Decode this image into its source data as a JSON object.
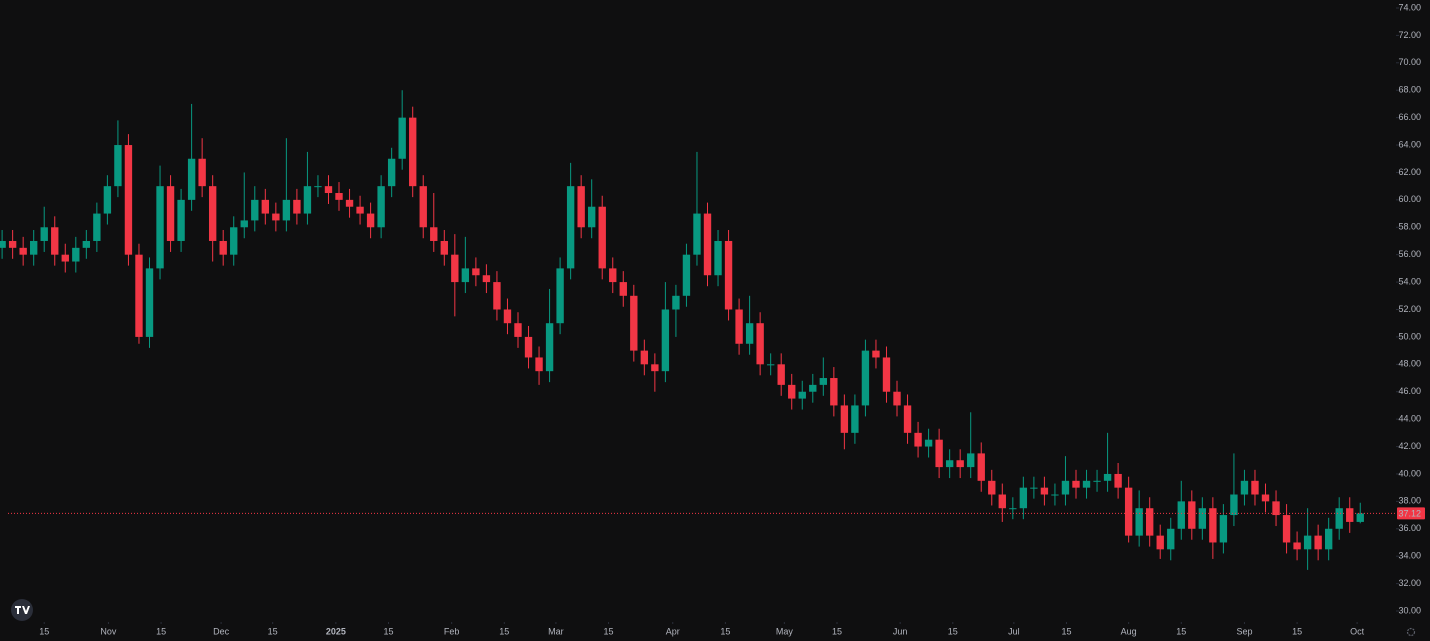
{
  "chart_data": {
    "type": "candlestick",
    "up_color": "#089981",
    "down_color": "#f23645",
    "ylim": [
      30,
      74
    ],
    "yticks": [
      {
        "value": 30,
        "label": "30.00"
      },
      {
        "value": 32,
        "label": "32.00"
      },
      {
        "value": 34,
        "label": "34.00"
      },
      {
        "value": 36,
        "label": "36.00"
      },
      {
        "value": 38,
        "label": "38.00"
      },
      {
        "value": 40,
        "label": "40.00"
      },
      {
        "value": 42,
        "label": "42.00"
      },
      {
        "value": 44,
        "label": "44.00"
      },
      {
        "value": 46,
        "label": "46.00"
      },
      {
        "value": 48,
        "label": "48.00"
      },
      {
        "value": 50,
        "label": "50.00"
      },
      {
        "value": 52,
        "label": "52.00"
      },
      {
        "value": 54,
        "label": "54.00"
      },
      {
        "value": 56,
        "label": "56.00"
      },
      {
        "value": 58,
        "label": "58.00"
      },
      {
        "value": 60,
        "label": "60.00"
      },
      {
        "value": 62,
        "label": "62.00"
      },
      {
        "value": 64,
        "label": "64.00"
      },
      {
        "value": 66,
        "label": "66.00"
      },
      {
        "value": 68,
        "label": "68.00"
      },
      {
        "value": 70,
        "label": "70.00"
      },
      {
        "value": 72,
        "label": "72.00"
      },
      {
        "value": 74,
        "label": "74.00"
      }
    ],
    "xlim": [
      -0.2,
      132.3
    ],
    "xticks": [
      {
        "value": 4.0,
        "label": "15"
      },
      {
        "value": 10.1,
        "label": "Nov"
      },
      {
        "value": 15.1,
        "label": "15"
      },
      {
        "value": 20.8,
        "label": "Dec"
      },
      {
        "value": 25.7,
        "label": "15"
      },
      {
        "value": 31.7,
        "label": "2025",
        "bold": true
      },
      {
        "value": 36.7,
        "label": "15"
      },
      {
        "value": 42.7,
        "label": "Feb"
      },
      {
        "value": 47.7,
        "label": "15"
      },
      {
        "value": 52.6,
        "label": "Mar"
      },
      {
        "value": 57.6,
        "label": "15"
      },
      {
        "value": 63.7,
        "label": "Apr"
      },
      {
        "value": 68.7,
        "label": "15"
      },
      {
        "value": 74.3,
        "label": "May"
      },
      {
        "value": 79.3,
        "label": "15"
      },
      {
        "value": 85.3,
        "label": "Jun"
      },
      {
        "value": 90.3,
        "label": "15"
      },
      {
        "value": 96.1,
        "label": "Jul"
      },
      {
        "value": 101.1,
        "label": "15"
      },
      {
        "value": 107.0,
        "label": "Aug"
      },
      {
        "value": 112.0,
        "label": "15"
      },
      {
        "value": 118.0,
        "label": "Sep"
      },
      {
        "value": 123.0,
        "label": "15"
      },
      {
        "value": 128.7,
        "label": "Oct"
      }
    ],
    "last_price": 37.12,
    "last_price_label": "37.12",
    "open": [
      56.5,
      57,
      56.5,
      56,
      57,
      58,
      56,
      55.5,
      56.5,
      57,
      59,
      61,
      64,
      56,
      50,
      55,
      61,
      57,
      60,
      63,
      61,
      57,
      56,
      58,
      58.5,
      60,
      59,
      58.5,
      60,
      59,
      61,
      61,
      60.5,
      60,
      59.5,
      59,
      58,
      61,
      63,
      66,
      61,
      58,
      57,
      56,
      54,
      55,
      54.5,
      54,
      52,
      51,
      50,
      48.5,
      47.5,
      51,
      55,
      61,
      58,
      59.5,
      55,
      54,
      53,
      49,
      48,
      47.5,
      52,
      53,
      56,
      59,
      54.5,
      57,
      52,
      49.5,
      51,
      48,
      48,
      46.5,
      45.5,
      46,
      46.5,
      47,
      45,
      43,
      45,
      49,
      48.5,
      46,
      45,
      43,
      42,
      42.5,
      40.5,
      41,
      40.5,
      41.5,
      39.5,
      38.5,
      37.5,
      37.5,
      39,
      39,
      38.5,
      38.5,
      39.5,
      39,
      39.5,
      39.5,
      40,
      39,
      35.5,
      37.5,
      35.5,
      34.5,
      36,
      38,
      36,
      37.5,
      35,
      37,
      38.5,
      39.5,
      38.5,
      38,
      37,
      35,
      34.5,
      35.5,
      34.5,
      36,
      37.5,
      36.5
    ],
    "high": [
      57.8,
      57.8,
      57.3,
      57.8,
      59.5,
      58.8,
      56.8,
      57.3,
      57.8,
      59.8,
      61.8,
      65.8,
      64.8,
      56.8,
      55.8,
      62.5,
      61.8,
      60.8,
      67,
      64.5,
      61.8,
      57.8,
      58.8,
      62,
      61,
      60.8,
      59.8,
      64.5,
      60.8,
      63.5,
      61.8,
      61.8,
      61.3,
      60.8,
      60.3,
      59.8,
      61.8,
      63.8,
      68,
      66.8,
      61.8,
      60.5,
      57.8,
      57.5,
      57.3,
      55.8,
      55.3,
      54.8,
      52.8,
      51.8,
      50.8,
      49.3,
      53.5,
      55.8,
      62.7,
      61.8,
      61.5,
      60.3,
      55.8,
      54.8,
      53.8,
      49.8,
      48.8,
      54,
      53.8,
      56.8,
      63.5,
      59.8,
      57.8,
      57.8,
      52.8,
      53,
      51.8,
      48.8,
      48.8,
      47.3,
      46.8,
      47.3,
      48.5,
      47.8,
      45.8,
      45.8,
      49.8,
      49.8,
      49.3,
      46.8,
      45.8,
      43.8,
      43.3,
      43.3,
      41.8,
      41.8,
      44.5,
      42.3,
      40.3,
      39.3,
      38.3,
      39.8,
      39.8,
      39.8,
      39.3,
      41.3,
      40.3,
      40.3,
      40.3,
      43,
      40.8,
      39.8,
      38.8,
      38.3,
      36.3,
      36.8,
      39.5,
      38.8,
      38.3,
      38.3,
      37.8,
      41.5,
      40.3,
      40.3,
      39.3,
      38.8,
      37.8,
      35.8,
      37.5,
      36.3,
      36.8,
      38.3,
      38.3,
      37.9
    ],
    "low": [
      55.7,
      55.7,
      55.2,
      55.2,
      56.2,
      55.2,
      54.7,
      54.7,
      55.7,
      56.2,
      58.2,
      60.2,
      55.2,
      49.5,
      49.2,
      54.2,
      56.2,
      56.2,
      59.2,
      60.2,
      55.5,
      55.2,
      55.2,
      57.2,
      57.7,
      58.2,
      57.7,
      57.7,
      58.2,
      58.2,
      60.2,
      59.7,
      59.2,
      58.7,
      58.2,
      57.2,
      57.2,
      60.2,
      62.2,
      60.2,
      57.2,
      56.2,
      55.2,
      51.5,
      53.2,
      53.7,
      53.2,
      51.2,
      50.2,
      49.2,
      47.7,
      46.5,
      46.7,
      50.2,
      54.2,
      57.2,
      57.2,
      54.2,
      53.2,
      52.2,
      48.2,
      47.2,
      46,
      46.7,
      50,
      52.2,
      55.2,
      53.7,
      53.7,
      51.2,
      48.7,
      48.7,
      47.2,
      47.2,
      45.7,
      44.7,
      44.7,
      45.2,
      45.7,
      44.2,
      41.8,
      42.2,
      44.2,
      47.7,
      45.2,
      44.2,
      42.2,
      41.2,
      41.2,
      39.7,
      39.7,
      39.7,
      39.7,
      38.7,
      37.7,
      36.5,
      36.7,
      36.7,
      38.2,
      37.7,
      37.7,
      37.7,
      38.2,
      38.2,
      38.7,
      38.7,
      38.2,
      35,
      34.7,
      34.7,
      33.8,
      33.7,
      35.2,
      35.2,
      35.2,
      33.8,
      34.2,
      36.2,
      37.7,
      37.7,
      37.2,
      36.2,
      34.2,
      33.7,
      33,
      33.7,
      33.7,
      35.2,
      35.7,
      36.4
    ],
    "close": [
      57,
      56.5,
      56,
      57,
      58,
      56,
      55.5,
      56.5,
      57,
      59,
      61,
      64,
      56,
      50,
      55,
      61,
      57,
      60,
      63,
      61,
      57,
      56,
      58,
      58.5,
      60,
      59,
      58.5,
      60,
      59,
      61,
      61,
      60.5,
      60,
      59.5,
      59,
      58,
      61,
      63,
      66,
      61,
      58,
      57,
      56,
      54,
      55,
      54.5,
      54,
      52,
      51,
      50,
      48.5,
      47.5,
      51,
      55,
      61,
      58,
      59.5,
      55,
      54,
      53,
      49,
      48,
      47.5,
      52,
      53,
      56,
      59,
      54.5,
      57,
      52,
      49.5,
      51,
      48,
      48,
      46.5,
      45.5,
      46,
      46.5,
      47,
      45,
      43,
      45,
      49,
      48.5,
      46,
      45,
      43,
      42,
      42.5,
      40.5,
      41,
      40.5,
      41.5,
      39.5,
      38.5,
      37.5,
      37.5,
      39,
      39,
      38.5,
      38.5,
      39.5,
      39,
      39.5,
      39.5,
      40,
      39,
      35.5,
      37.5,
      35.5,
      34.5,
      36,
      38,
      36,
      37.5,
      35,
      37,
      38.5,
      39.5,
      38.5,
      38,
      37,
      35,
      34.5,
      35.5,
      34.5,
      36,
      37.5,
      36.5,
      37.12
    ]
  }
}
